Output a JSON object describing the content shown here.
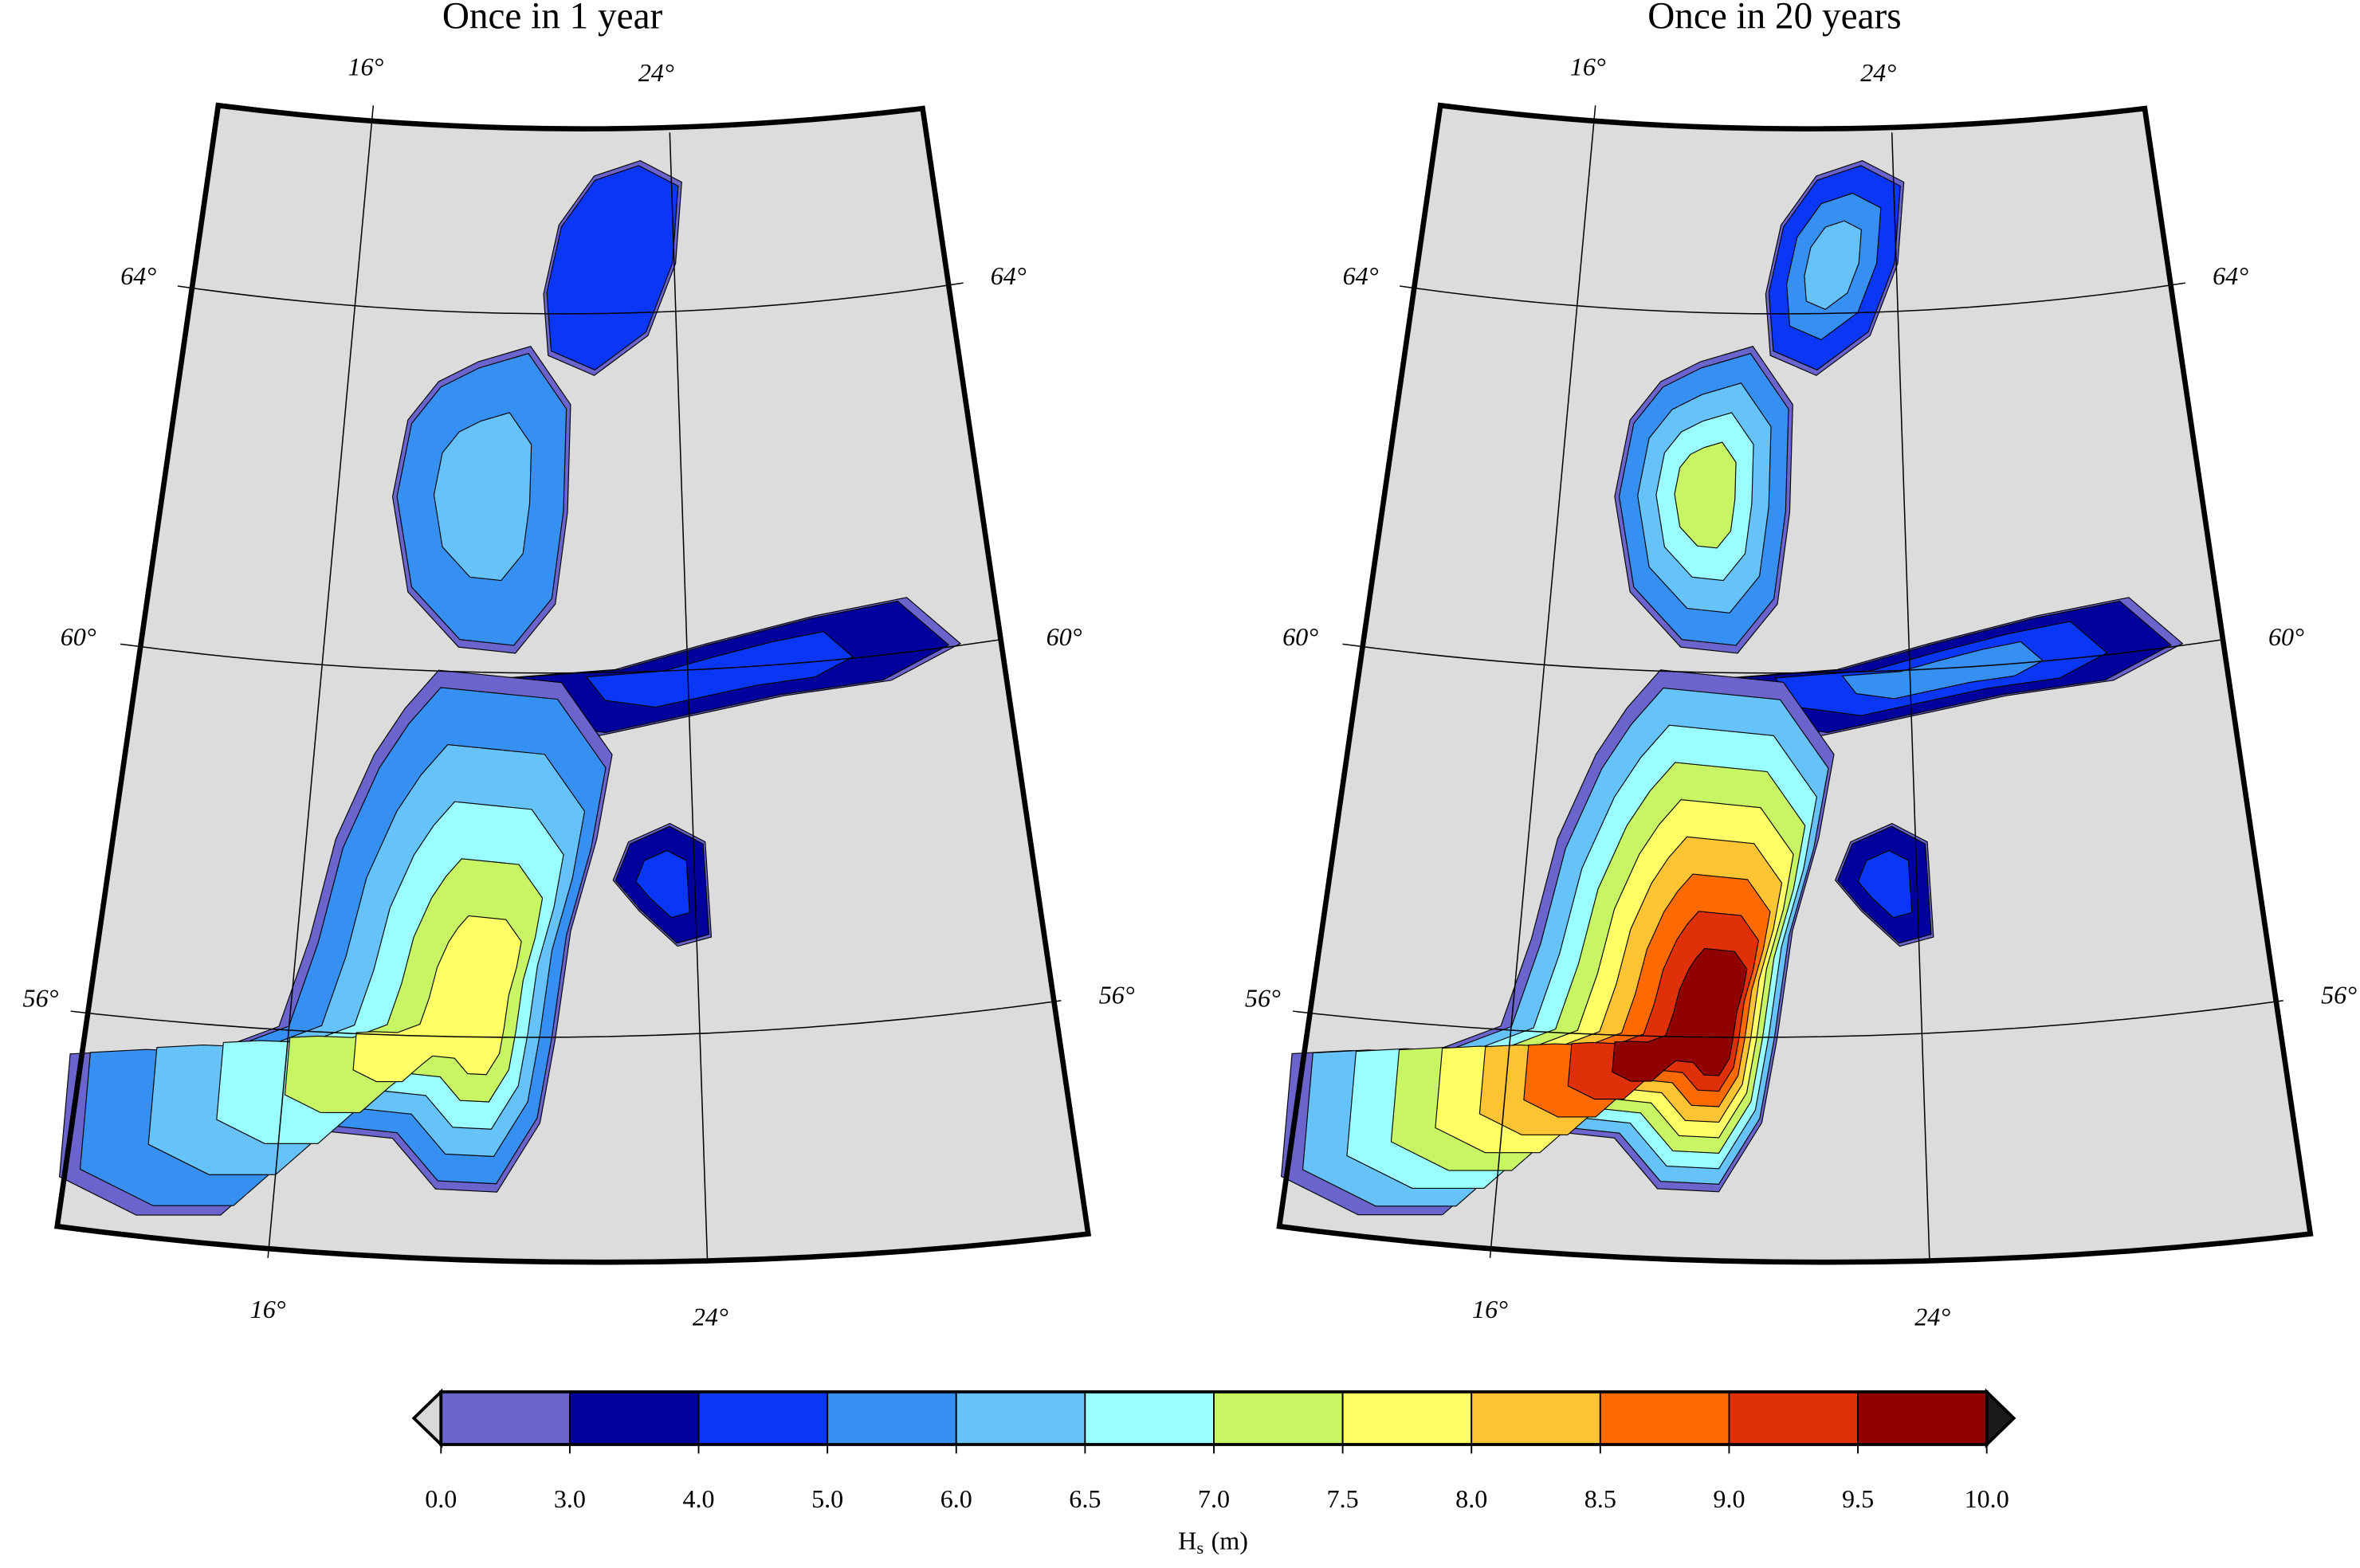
{
  "panels": [
    {
      "title": "Once in 1 year",
      "meridian_labels_top": [
        "16°",
        "24°"
      ],
      "meridian_labels_bottom": [
        "16°",
        "24°"
      ],
      "parallel_labels_left": [
        "64°",
        "60°",
        "56°"
      ],
      "parallel_labels_right": [
        "64°",
        "60°",
        "56°"
      ]
    },
    {
      "title": "Once in 20 years",
      "meridian_labels_top": [
        "16°",
        "24°"
      ],
      "meridian_labels_bottom": [
        "16°",
        "24°"
      ],
      "parallel_labels_left": [
        "64°",
        "60°",
        "56°"
      ],
      "parallel_labels_right": [
        "64°",
        "60°",
        "56°"
      ]
    }
  ],
  "colorbar": {
    "ticks": [
      {
        "value": 0,
        "label": "0.0"
      },
      {
        "value": 3,
        "label": "3.0"
      },
      {
        "value": 4,
        "label": "4.0"
      },
      {
        "value": 5,
        "label": "5.0"
      },
      {
        "value": 6,
        "label": "6.0"
      },
      {
        "value": 6.5,
        "label": "6.5"
      },
      {
        "value": 7,
        "label": "7.0"
      },
      {
        "value": 7.5,
        "label": "7.5"
      },
      {
        "value": 8,
        "label": "8.0"
      },
      {
        "value": 8.5,
        "label": "8.5"
      },
      {
        "value": 9,
        "label": "9.0"
      },
      {
        "value": 9.5,
        "label": "9.5"
      },
      {
        "value": 10,
        "label": "10.0"
      }
    ],
    "colors": [
      "#6a64cc",
      "#00009c",
      "#0a37f5",
      "#3690f2",
      "#66c3fa",
      "#99ffff",
      "#c8f564",
      "#ffff66",
      "#ffc433",
      "#ff6a00",
      "#e0300a",
      "#900000"
    ],
    "under_color": "#d9d9d9",
    "over_color": "#1a1a1a",
    "label": {
      "symbol": "H",
      "subscript": "s",
      "unit": "(m)"
    }
  }
}
